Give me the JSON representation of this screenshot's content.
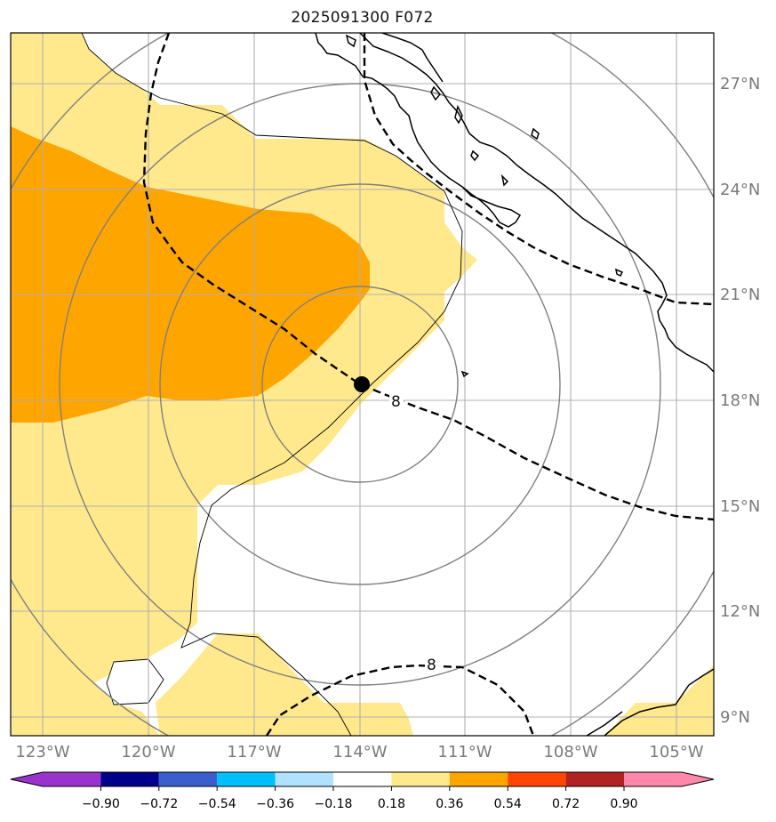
{
  "title": "2025091300 F072",
  "lat_labels": [
    "27°N",
    "24°N",
    "21°N",
    "18°N",
    "15°N",
    "12°N",
    "9°N"
  ],
  "lon_labels": [
    "123°W",
    "120°W",
    "117°W",
    "114°W",
    "111°W",
    "108°W",
    "105°W"
  ],
  "colorbar": {
    "ticks": [
      "−0.90",
      "−0.72",
      "−0.54",
      "−0.36",
      "−0.18",
      "0.18",
      "0.36",
      "0.54",
      "0.72",
      "0.90"
    ],
    "colors": [
      "#9933cc",
      "#00008b",
      "#3a5fcd",
      "#00bfff",
      "#b0e2ff",
      "#ffffff",
      "#ffe98c",
      "#ffa500",
      "#ff4500",
      "#b22222",
      "#ff88aa"
    ]
  },
  "contour_labels": [
    "8",
    "8"
  ],
  "fill_colors": {
    "light": "#ffe98c",
    "orange": "#ffa500"
  },
  "storm_center_icon": "filled-circle"
}
